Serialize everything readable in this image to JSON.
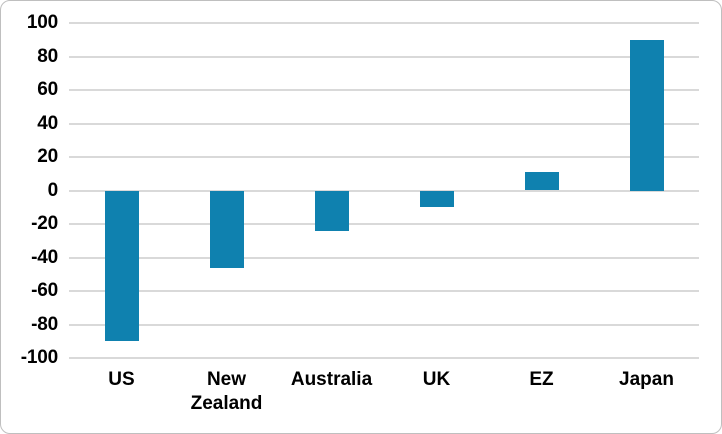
{
  "chart_data": {
    "type": "bar",
    "title": "",
    "xlabel": "",
    "ylabel": "",
    "categories": [
      "US",
      "New Zealand",
      "Australia",
      "UK",
      "EZ",
      "Japan"
    ],
    "values": [
      -90,
      -46,
      -24,
      -10,
      11,
      90
    ],
    "ylim": [
      -100,
      100
    ],
    "ytick_step": 20,
    "y_ticks": [
      "100",
      "80",
      "60",
      "40",
      "20",
      "0",
      "-20",
      "-40",
      "-60",
      "-80",
      "-100"
    ],
    "grid": true,
    "legend": false,
    "legend_position": "none",
    "colors": {
      "bar": "#0F81AF",
      "gridline": "#D9D9D9",
      "text": "#000000",
      "frame_border": "#BFBFBF",
      "background": "#FFFFFF"
    }
  }
}
